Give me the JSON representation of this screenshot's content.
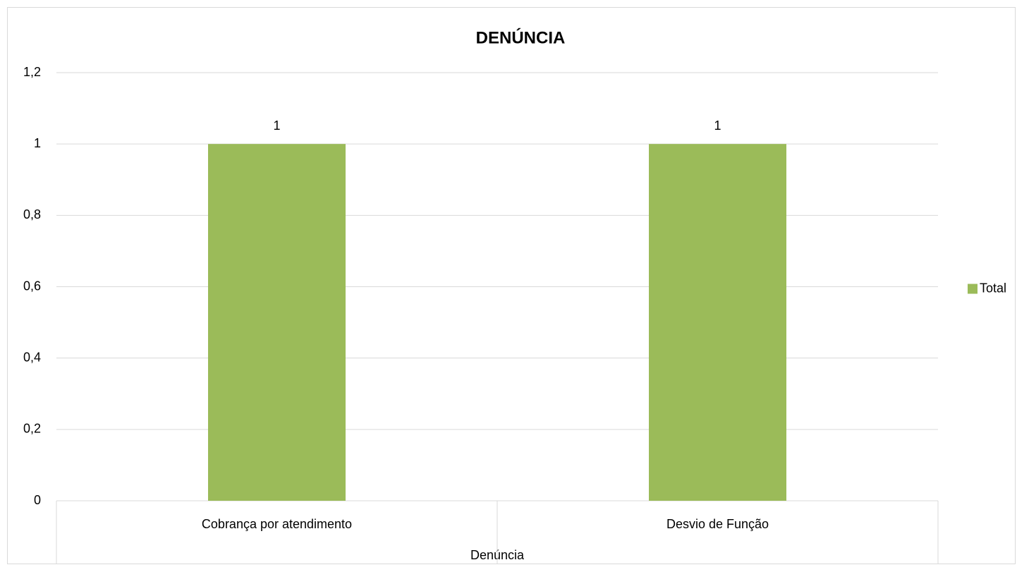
{
  "chart_data": {
    "type": "bar",
    "title": "DENÚNCIA",
    "categories": [
      "Cobrança por atendimento",
      "Desvio de Função"
    ],
    "series": [
      {
        "name": "Total",
        "color": "#9bbb59",
        "values": [
          1,
          1
        ]
      }
    ],
    "x_label": "Denúncia",
    "ylim": [
      0,
      1.2
    ],
    "yticks": [
      0,
      {
        "value": 0.2,
        "label": "0,2"
      },
      {
        "value": 0.4,
        "label": "0,4"
      },
      {
        "value": 0.6,
        "label": "0,6"
      },
      {
        "value": 0.8,
        "label": "0,8"
      },
      1,
      {
        "value": 1.2,
        "label": "1,2"
      }
    ],
    "grid": true,
    "legend": "right"
  }
}
